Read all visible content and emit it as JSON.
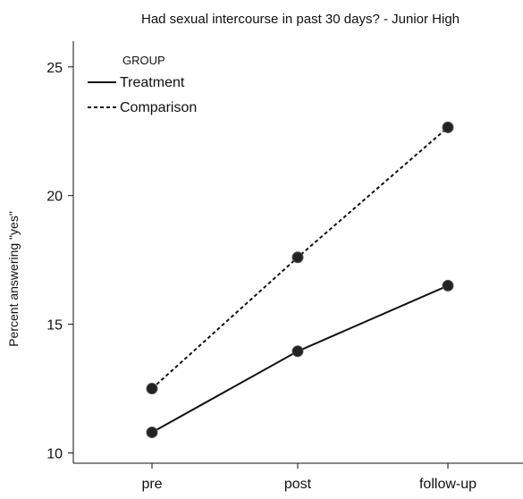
{
  "chart_data": {
    "type": "line",
    "title": "Had sexual intercourse in past 30 days? - Junior High",
    "xlabel": "",
    "ylabel": "Percent answering \"yes\"",
    "categories": [
      "pre",
      "post",
      "follow-up"
    ],
    "ylim": [
      9.6,
      26
    ],
    "yticks": [
      10,
      15,
      20,
      25
    ],
    "grid": false,
    "legend": {
      "title": "GROUP",
      "placement": "top-left"
    },
    "series": [
      {
        "name": "Treatment",
        "values": [
          10.8,
          13.95,
          16.5
        ],
        "line_style": "solid",
        "color": "#111111"
      },
      {
        "name": "Comparison",
        "values": [
          12.5,
          17.6,
          22.65
        ],
        "line_style": "dashed",
        "color": "#111111"
      }
    ]
  }
}
